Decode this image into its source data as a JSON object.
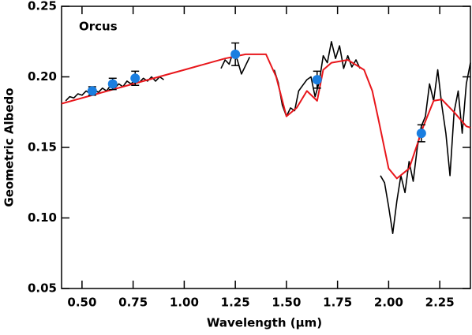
{
  "chart_data": {
    "type": "line",
    "annotation": "Orcus",
    "xlabel": "Wavelength (μm)",
    "ylabel": "Geometric Albedo",
    "xlim": [
      0.4,
      2.4
    ],
    "ylim": [
      0.05,
      0.25
    ],
    "xticks": [
      {
        "value": 0.5,
        "label": "0.50"
      },
      {
        "value": 0.75,
        "label": "0.75"
      },
      {
        "value": 1.0,
        "label": "1.00"
      },
      {
        "value": 1.25,
        "label": "1.25"
      },
      {
        "value": 1.5,
        "label": "1.50"
      },
      {
        "value": 1.75,
        "label": "1.75"
      },
      {
        "value": 2.0,
        "label": "2.00"
      },
      {
        "value": 2.25,
        "label": "2.25"
      }
    ],
    "yticks": [
      {
        "value": 0.05,
        "label": "0.05"
      },
      {
        "value": 0.1,
        "label": "0.10"
      },
      {
        "value": 0.15,
        "label": "0.15"
      },
      {
        "value": 0.2,
        "label": "0.20"
      },
      {
        "value": 0.25,
        "label": "0.25"
      }
    ],
    "series": [
      {
        "color": "#000000",
        "kind": "line",
        "x": [
          0.42,
          0.44,
          0.46,
          0.48,
          0.5,
          0.52,
          0.54,
          0.56,
          0.58,
          0.6,
          0.62,
          0.64,
          0.66,
          0.68,
          0.7,
          0.72,
          0.74,
          0.76,
          0.78,
          0.8,
          0.82,
          0.84,
          0.86,
          0.88,
          0.9,
          1.0,
          1.18,
          1.2,
          1.22,
          1.24,
          1.26,
          1.28,
          1.3,
          1.32,
          1.38,
          1.44,
          1.46,
          1.48,
          1.5,
          1.52,
          1.54,
          1.56,
          1.58,
          1.6,
          1.62,
          1.64,
          1.66,
          1.68,
          1.7,
          1.72,
          1.74,
          1.76,
          1.78,
          1.8,
          1.82,
          1.84,
          1.86,
          1.9,
          1.96,
          1.98,
          2.0,
          2.02,
          2.04,
          2.06,
          2.08,
          2.1,
          2.12,
          2.14,
          2.16,
          2.18,
          2.2,
          2.22,
          2.24,
          2.26,
          2.28,
          2.3,
          2.32,
          2.34,
          2.36,
          2.38,
          2.4
        ],
        "values": [
          0.183,
          0.186,
          0.185,
          0.188,
          0.187,
          0.19,
          0.188,
          0.191,
          0.189,
          0.192,
          0.19,
          0.194,
          0.192,
          0.195,
          0.193,
          0.197,
          0.195,
          0.198,
          0.196,
          0.199,
          0.197,
          0.2,
          0.197,
          0.2,
          0.198,
          null,
          0.206,
          0.212,
          0.209,
          0.218,
          0.212,
          0.202,
          0.208,
          0.214,
          null,
          0.205,
          0.196,
          0.18,
          0.172,
          0.178,
          0.176,
          0.19,
          0.194,
          0.198,
          0.2,
          0.186,
          0.196,
          0.215,
          0.21,
          0.225,
          0.213,
          0.222,
          0.206,
          0.215,
          0.207,
          0.212,
          0.206,
          null,
          0.13,
          0.125,
          0.108,
          0.089,
          0.112,
          0.13,
          0.118,
          0.14,
          0.126,
          0.15,
          0.165,
          0.172,
          0.195,
          0.183,
          0.205,
          0.18,
          0.16,
          0.13,
          0.175,
          0.19,
          0.16,
          0.195,
          0.21
        ]
      },
      {
        "color": "#e8161b",
        "kind": "line",
        "x": [
          0.4,
          0.6,
          0.8,
          1.0,
          1.2,
          1.3,
          1.4,
          1.45,
          1.5,
          1.55,
          1.6,
          1.65,
          1.68,
          1.72,
          1.8,
          1.88,
          1.92,
          1.95,
          2.0,
          2.04,
          2.1,
          2.17,
          2.22,
          2.26,
          2.32,
          2.38,
          2.4
        ],
        "values": [
          0.181,
          0.189,
          0.197,
          0.205,
          0.213,
          0.216,
          0.216,
          0.2,
          0.172,
          0.178,
          0.19,
          0.183,
          0.205,
          0.21,
          0.212,
          0.205,
          0.19,
          0.17,
          0.135,
          0.128,
          0.135,
          0.165,
          0.183,
          0.184,
          0.175,
          0.165,
          0.164
        ]
      },
      {
        "color": "#1a7ee0",
        "kind": "points",
        "x": [
          0.55,
          0.65,
          0.76,
          1.25,
          1.65,
          2.16
        ],
        "values": [
          0.19,
          0.195,
          0.199,
          0.216,
          0.198,
          0.16
        ],
        "errors": [
          0.003,
          0.004,
          0.005,
          0.008,
          0.006,
          0.006
        ]
      }
    ]
  }
}
